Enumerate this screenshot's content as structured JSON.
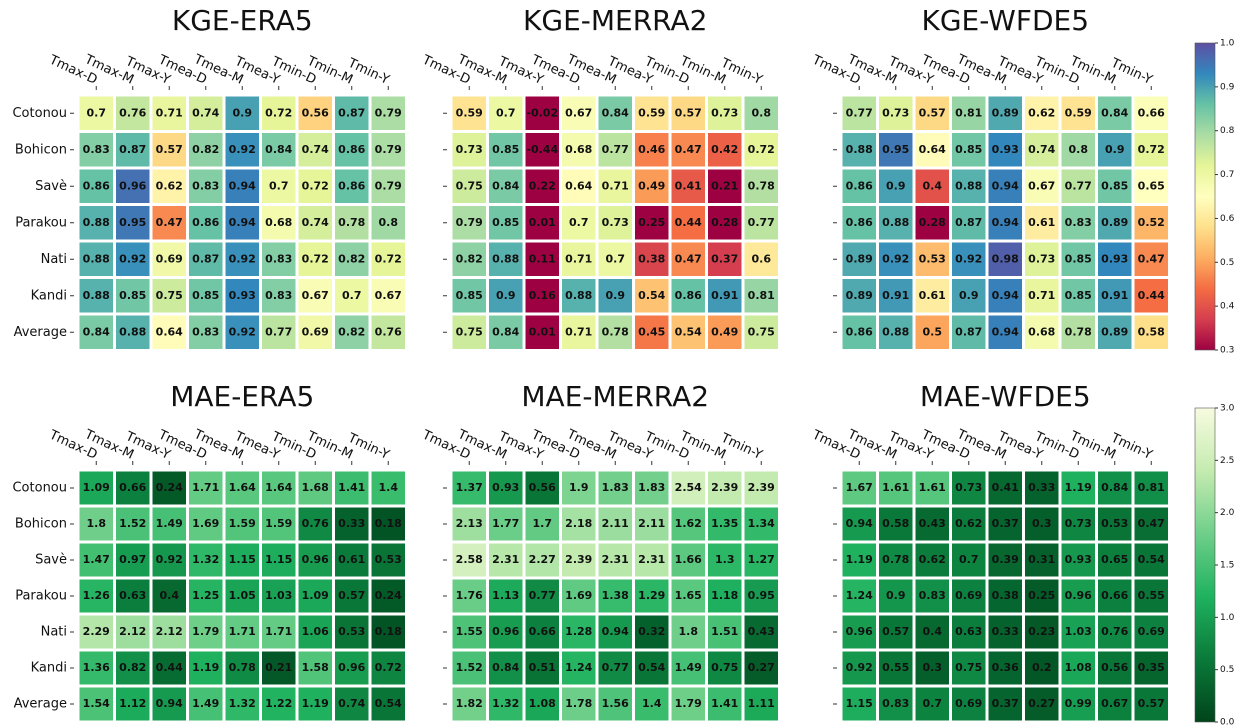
{
  "chart_data": [
    {
      "type": "heatmap",
      "title": "KGE-ERA5",
      "columns": [
        "Tmax-D",
        "Tmax-M",
        "Tmax-Y",
        "Tmea-D",
        "Tmea-M",
        "Tmea-Y",
        "Tmin-D",
        "Tmin-M",
        "Tmin-Y"
      ],
      "rows": [
        "Cotonou",
        "Bohicon",
        "Savè",
        "Parakou",
        "Nati",
        "Kandi",
        "Average"
      ],
      "values": [
        [
          0.7,
          0.76,
          0.71,
          0.74,
          0.9,
          0.72,
          0.56,
          0.87,
          0.79
        ],
        [
          0.83,
          0.87,
          0.57,
          0.82,
          0.92,
          0.84,
          0.74,
          0.86,
          0.79
        ],
        [
          0.86,
          0.96,
          0.62,
          0.83,
          0.94,
          0.7,
          0.72,
          0.86,
          0.79
        ],
        [
          0.88,
          0.95,
          0.47,
          0.86,
          0.94,
          0.68,
          0.74,
          0.78,
          0.8
        ],
        [
          0.88,
          0.92,
          0.69,
          0.87,
          0.92,
          0.83,
          0.72,
          0.82,
          0.72
        ],
        [
          0.88,
          0.85,
          0.75,
          0.85,
          0.93,
          0.83,
          0.67,
          0.7,
          0.67
        ],
        [
          0.84,
          0.88,
          0.64,
          0.83,
          0.92,
          0.77,
          0.69,
          0.82,
          0.76
        ]
      ],
      "zlim": [
        0.3,
        1
      ],
      "colormap": [
        "#9e0142",
        "#d53e4f",
        "#f46d43",
        "#fdae61",
        "#fee08b",
        "#ffffbf",
        "#e6f598",
        "#abdda4",
        "#66c2a5",
        "#3288bd",
        "#5e4fa2"
      ]
    },
    {
      "type": "heatmap",
      "title": "KGE-MERRA2",
      "columns": [
        "Tmax-D",
        "Tmax-M",
        "Tmax-Y",
        "Tmea-D",
        "Tmea-M",
        "Tmea-Y",
        "Tmin-D",
        "Tmin-M",
        "Tmin-Y"
      ],
      "values": [
        [
          0.59,
          0.7,
          -0.02,
          0.67,
          0.84,
          0.59,
          0.57,
          0.73,
          0.8
        ],
        [
          0.73,
          0.85,
          -0.44,
          0.68,
          0.77,
          0.46,
          0.47,
          0.42,
          0.72
        ],
        [
          0.75,
          0.84,
          0.22,
          0.64,
          0.71,
          0.49,
          0.41,
          0.21,
          0.78
        ],
        [
          0.79,
          0.85,
          0.01,
          0.7,
          0.73,
          0.25,
          0.44,
          0.28,
          0.77
        ],
        [
          0.82,
          0.88,
          0.11,
          0.71,
          0.7,
          0.38,
          0.47,
          0.37,
          0.6
        ],
        [
          0.85,
          0.9,
          0.16,
          0.88,
          0.9,
          0.54,
          0.86,
          0.91,
          0.81
        ],
        [
          0.75,
          0.84,
          0.01,
          0.71,
          0.78,
          0.45,
          0.54,
          0.49,
          0.75
        ]
      ],
      "zlim": [
        0.3,
        1
      ],
      "colormap": [
        "#9e0142",
        "#d53e4f",
        "#f46d43",
        "#fdae61",
        "#fee08b",
        "#ffffbf",
        "#e6f598",
        "#abdda4",
        "#66c2a5",
        "#3288bd",
        "#5e4fa2"
      ]
    },
    {
      "type": "heatmap",
      "title": "KGE-WFDE5",
      "columns": [
        "Tmax-D",
        "Tmax-M",
        "Tmax-Y",
        "Tmea-D",
        "Tmea-M",
        "Tmea-Y",
        "Tmin-D",
        "Tmin-M",
        "Tmin-Y"
      ],
      "values": [
        [
          0.77,
          0.73,
          0.57,
          0.81,
          0.89,
          0.62,
          0.59,
          0.84,
          0.66
        ],
        [
          0.88,
          0.95,
          0.64,
          0.85,
          0.93,
          0.74,
          0.8,
          0.9,
          0.72
        ],
        [
          0.86,
          0.9,
          0.4,
          0.88,
          0.94,
          0.67,
          0.77,
          0.85,
          0.65
        ],
        [
          0.86,
          0.88,
          0.28,
          0.87,
          0.94,
          0.61,
          0.83,
          0.89,
          0.52
        ],
        [
          0.89,
          0.92,
          0.53,
          0.92,
          0.98,
          0.73,
          0.85,
          0.93,
          0.47
        ],
        [
          0.89,
          0.91,
          0.61,
          0.9,
          0.94,
          0.71,
          0.85,
          0.91,
          0.44
        ],
        [
          0.86,
          0.88,
          0.5,
          0.87,
          0.94,
          0.68,
          0.78,
          0.89,
          0.58
        ]
      ],
      "zlim": [
        0.3,
        1
      ],
      "colormap": [
        "#9e0142",
        "#d53e4f",
        "#f46d43",
        "#fdae61",
        "#fee08b",
        "#ffffbf",
        "#e6f598",
        "#abdda4",
        "#66c2a5",
        "#3288bd",
        "#5e4fa2"
      ],
      "colorbar_ticks": [
        0.3,
        0.4,
        0.5,
        0.6,
        0.7,
        0.8,
        0.9,
        {
          "value": 1,
          "label": "1.0"
        }
      ]
    },
    {
      "type": "heatmap",
      "title": "MAE-ERA5",
      "columns": [
        "Tmax-D",
        "Tmax-M",
        "Tmax-Y",
        "Tmea-D",
        "Tmea-M",
        "Tmea-Y",
        "Tmin-D",
        "Tmin-M",
        "Tmin-Y"
      ],
      "rows": [
        "Cotonou",
        "Bohicon",
        "Savè",
        "Parakou",
        "Nati",
        "Kandi",
        "Average"
      ],
      "values": [
        [
          1.09,
          0.66,
          0.24,
          1.71,
          1.64,
          1.64,
          1.68,
          1.41,
          1.4
        ],
        [
          1.8,
          1.52,
          1.49,
          1.69,
          1.59,
          1.59,
          0.76,
          0.33,
          0.18
        ],
        [
          1.47,
          0.97,
          0.92,
          1.32,
          1.15,
          1.15,
          0.96,
          0.61,
          0.53
        ],
        [
          1.26,
          0.63,
          0.4,
          1.25,
          1.05,
          1.03,
          1.09,
          0.57,
          0.24
        ],
        [
          2.29,
          2.12,
          2.12,
          1.79,
          1.71,
          1.71,
          1.06,
          0.53,
          0.18
        ],
        [
          1.36,
          0.82,
          0.44,
          1.19,
          0.78,
          0.21,
          1.58,
          0.96,
          0.72
        ],
        [
          1.54,
          1.12,
          0.94,
          1.49,
          1.32,
          1.22,
          1.19,
          0.74,
          0.54
        ]
      ],
      "zlim": [
        0,
        3
      ],
      "colormap": [
        "#00441b",
        "#0a7a3a",
        "#1fb25f",
        "#6fcf8a",
        "#c5ebb0",
        "#f7fbe0"
      ]
    },
    {
      "type": "heatmap",
      "title": "MAE-MERRA2",
      "columns": [
        "Tmax-D",
        "Tmax-M",
        "Tmax-Y",
        "Tmea-D",
        "Tmea-M",
        "Tmea-Y",
        "Tmin-D",
        "Tmin-M",
        "Tmin-Y"
      ],
      "values": [
        [
          1.37,
          0.93,
          0.56,
          1.9,
          1.83,
          1.83,
          2.54,
          2.39,
          2.39
        ],
        [
          2.13,
          1.77,
          1.7,
          2.18,
          2.11,
          2.11,
          1.62,
          1.35,
          1.34
        ],
        [
          2.58,
          2.31,
          2.27,
          2.39,
          2.31,
          2.31,
          1.66,
          1.3,
          1.27
        ],
        [
          1.76,
          1.13,
          0.77,
          1.69,
          1.38,
          1.29,
          1.65,
          1.18,
          0.95
        ],
        [
          1.55,
          0.96,
          0.66,
          1.28,
          0.94,
          0.32,
          1.8,
          1.51,
          0.43
        ],
        [
          1.52,
          0.84,
          0.51,
          1.24,
          0.77,
          0.54,
          1.49,
          0.75,
          0.27
        ],
        [
          1.82,
          1.32,
          1.08,
          1.78,
          1.56,
          1.4,
          1.79,
          1.41,
          1.11
        ]
      ],
      "zlim": [
        0,
        3
      ],
      "colormap": [
        "#00441b",
        "#0a7a3a",
        "#1fb25f",
        "#6fcf8a",
        "#c5ebb0",
        "#f7fbe0"
      ]
    },
    {
      "type": "heatmap",
      "title": "MAE-WFDE5",
      "columns": [
        "Tmax-D",
        "Tmax-M",
        "Tmax-Y",
        "Tmea-D",
        "Tmea-M",
        "Tmea-Y",
        "Tmin-D",
        "Tmin-M",
        "Tmin-Y"
      ],
      "values": [
        [
          1.67,
          1.61,
          1.61,
          0.73,
          0.41,
          0.33,
          1.19,
          0.84,
          0.81
        ],
        [
          0.94,
          0.58,
          0.43,
          0.62,
          0.37,
          0.3,
          0.73,
          0.53,
          0.47
        ],
        [
          1.19,
          0.78,
          0.62,
          0.7,
          0.39,
          0.31,
          0.93,
          0.65,
          0.54
        ],
        [
          1.24,
          0.9,
          0.83,
          0.69,
          0.38,
          0.25,
          0.96,
          0.66,
          0.55
        ],
        [
          0.96,
          0.57,
          0.4,
          0.63,
          0.33,
          0.23,
          1.03,
          0.76,
          0.69
        ],
        [
          0.92,
          0.55,
          0.3,
          0.75,
          0.36,
          0.2,
          1.08,
          0.56,
          0.35
        ],
        [
          1.15,
          0.83,
          0.7,
          0.69,
          0.37,
          0.27,
          0.99,
          0.67,
          0.57
        ]
      ],
      "zlim": [
        0,
        3
      ],
      "colormap": [
        "#00441b",
        "#0a7a3a",
        "#1fb25f",
        "#6fcf8a",
        "#c5ebb0",
        "#f7fbe0"
      ],
      "colorbar_ticks": [
        {
          "value": 0,
          "label": "0.0"
        },
        0.5,
        {
          "value": 1,
          "label": "1.0"
        },
        1.5,
        {
          "value": 2,
          "label": "2.0"
        },
        2.5,
        {
          "value": 3,
          "label": "3.0"
        }
      ]
    }
  ]
}
